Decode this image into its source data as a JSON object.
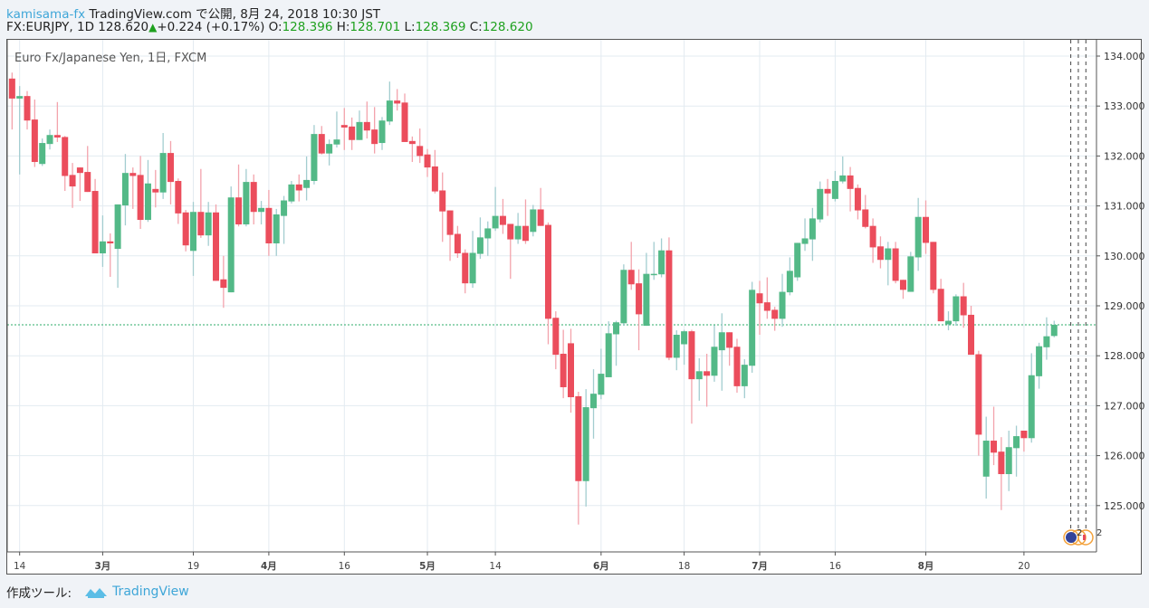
{
  "header": {
    "author": "kamisama-fx",
    "published": "TradingView.com で公開, 8月 24, 2018 10:30 JST",
    "symbol": "FX:EURJPY, 1D",
    "last": "128.620",
    "change": "+0.224 (+0.17%)",
    "o_label": "O:",
    "o": "128.396",
    "h_label": "H:",
    "h": "128.701",
    "l_label": "L:",
    "l": "128.369",
    "c_label": "C:",
    "c": "128.620"
  },
  "legend": "Euro Fx/Japanese Yen, 1日, FXCM",
  "footer": {
    "label": "作成ツール:",
    "brand": "TradingView"
  },
  "colors": {
    "up": "#53b987",
    "down": "#eb4d5c",
    "up_wick": "#a3cdd0",
    "down_wick": "#f3a3ac",
    "grid": "#e3ebf1",
    "last_line": "#2dab6a"
  },
  "chart_data": {
    "type": "candlestick",
    "title": "Euro Fx/Japanese Yen, 1日, FXCM",
    "ylim": [
      124.2,
      134.3
    ],
    "y_ticks": [
      "125.000",
      "126.000",
      "127.000",
      "128.000",
      "129.000",
      "130.000",
      "131.000",
      "132.000",
      "133.000",
      "134.000"
    ],
    "x_ticks": [
      {
        "label": "14",
        "index": 2,
        "bold": false
      },
      {
        "label": "3月",
        "index": 13,
        "bold": true
      },
      {
        "label": "19",
        "index": 25,
        "bold": false
      },
      {
        "label": "4月",
        "index": 35,
        "bold": true
      },
      {
        "label": "16",
        "index": 45,
        "bold": false
      },
      {
        "label": "5月",
        "index": 56,
        "bold": true
      },
      {
        "label": "14",
        "index": 65,
        "bold": false
      },
      {
        "label": "6月",
        "index": 79,
        "bold": true
      },
      {
        "label": "18",
        "index": 90,
        "bold": false
      },
      {
        "label": "7月",
        "index": 100,
        "bold": true
      },
      {
        "label": "16",
        "index": 110,
        "bold": false
      },
      {
        "label": "8月",
        "index": 122,
        "bold": true
      },
      {
        "label": "20",
        "index": 135,
        "bold": false
      }
    ],
    "last_price": 128.62,
    "future_event_markers": [
      141.2,
      142.2,
      143.2
    ],
    "event_badges": [
      "2",
      "2"
    ],
    "ohlc": [
      [
        133.35,
        133.6,
        133.2,
        133.55
      ],
      [
        133.55,
        133.67,
        132.53,
        133.15
      ],
      [
        133.15,
        133.4,
        131.63,
        133.2
      ],
      [
        133.2,
        133.3,
        132.53,
        132.71
      ],
      [
        132.73,
        133.13,
        131.78,
        131.88
      ],
      [
        131.84,
        132.35,
        131.8,
        132.26
      ],
      [
        132.24,
        132.53,
        132.13,
        132.42
      ],
      [
        132.42,
        133.08,
        132.28,
        132.37
      ],
      [
        132.38,
        132.4,
        131.3,
        131.6
      ],
      [
        131.62,
        131.86,
        130.96,
        131.39
      ],
      [
        131.77,
        131.77,
        131.1,
        131.66
      ],
      [
        131.68,
        132.2,
        131.28,
        131.28
      ],
      [
        131.3,
        131.54,
        130.05,
        130.05
      ],
      [
        130.05,
        130.81,
        129.78,
        130.29
      ],
      [
        130.29,
        130.45,
        129.58,
        130.25
      ],
      [
        130.14,
        131.03,
        129.36,
        131.03
      ],
      [
        131.01,
        132.04,
        130.61,
        131.66
      ],
      [
        131.66,
        131.77,
        130.94,
        131.6
      ],
      [
        131.62,
        132.0,
        130.54,
        130.72
      ],
      [
        130.72,
        131.92,
        130.68,
        131.45
      ],
      [
        131.34,
        131.72,
        130.97,
        131.27
      ],
      [
        131.27,
        132.46,
        131.14,
        132.06
      ],
      [
        132.06,
        132.3,
        131.03,
        131.48
      ],
      [
        131.5,
        131.55,
        130.64,
        130.85
      ],
      [
        130.87,
        130.92,
        130.09,
        130.21
      ],
      [
        130.1,
        131.08,
        129.6,
        130.88
      ],
      [
        130.88,
        131.74,
        130.36,
        130.41
      ],
      [
        130.41,
        131.08,
        130.2,
        130.87
      ],
      [
        130.87,
        131.03,
        129.5,
        129.5
      ],
      [
        129.53,
        130.0,
        128.96,
        129.36
      ],
      [
        129.27,
        131.39,
        129.27,
        131.17
      ],
      [
        131.17,
        131.83,
        130.59,
        130.63
      ],
      [
        130.63,
        131.74,
        130.59,
        131.48
      ],
      [
        131.48,
        131.63,
        130.63,
        130.88
      ],
      [
        130.88,
        131.1,
        130.63,
        130.96
      ],
      [
        130.96,
        131.32,
        130.0,
        130.25
      ],
      [
        130.25,
        130.94,
        130.0,
        130.83
      ],
      [
        130.8,
        131.2,
        130.24,
        131.11
      ],
      [
        131.09,
        131.5,
        131.05,
        131.43
      ],
      [
        131.43,
        131.63,
        131.09,
        131.31
      ],
      [
        131.36,
        131.99,
        131.11,
        131.52
      ],
      [
        131.5,
        132.62,
        131.43,
        132.44
      ],
      [
        132.44,
        132.6,
        132.03,
        132.05
      ],
      [
        132.05,
        132.33,
        131.81,
        132.24
      ],
      [
        132.23,
        132.89,
        132.17,
        132.33
      ],
      [
        132.62,
        132.96,
        132.12,
        132.57
      ],
      [
        132.59,
        132.77,
        132.12,
        132.32
      ],
      [
        132.32,
        132.91,
        132.32,
        132.68
      ],
      [
        132.68,
        133.09,
        132.35,
        132.51
      ],
      [
        132.53,
        132.98,
        132.05,
        132.24
      ],
      [
        132.26,
        132.78,
        132.12,
        132.71
      ],
      [
        132.69,
        133.49,
        132.62,
        133.11
      ],
      [
        133.11,
        133.34,
        132.91,
        133.05
      ],
      [
        133.07,
        133.25,
        132.28,
        132.28
      ],
      [
        132.3,
        132.39,
        131.88,
        132.24
      ],
      [
        132.2,
        132.55,
        131.86,
        132.0
      ],
      [
        132.03,
        132.14,
        131.58,
        131.77
      ],
      [
        131.79,
        132.12,
        131.25,
        131.29
      ],
      [
        131.31,
        131.67,
        130.28,
        130.89
      ],
      [
        130.91,
        130.91,
        129.9,
        130.42
      ],
      [
        130.44,
        130.6,
        129.96,
        130.05
      ],
      [
        130.06,
        130.13,
        129.25,
        129.45
      ],
      [
        129.45,
        130.5,
        129.36,
        130.06
      ],
      [
        130.04,
        130.77,
        129.94,
        130.37
      ],
      [
        130.35,
        130.69,
        130.0,
        130.55
      ],
      [
        130.55,
        131.38,
        130.5,
        130.8
      ],
      [
        130.8,
        131.14,
        130.44,
        130.62
      ],
      [
        130.64,
        130.64,
        129.54,
        130.33
      ],
      [
        130.33,
        130.86,
        130.24,
        130.6
      ],
      [
        130.6,
        131.13,
        130.24,
        130.3
      ],
      [
        130.48,
        131.02,
        130.39,
        130.93
      ],
      [
        130.93,
        131.36,
        130.6,
        130.6
      ],
      [
        130.62,
        130.67,
        128.23,
        128.74
      ],
      [
        128.76,
        128.89,
        127.73,
        128.02
      ],
      [
        128.04,
        128.52,
        127.15,
        127.37
      ],
      [
        128.25,
        128.54,
        126.86,
        127.17
      ],
      [
        127.19,
        127.28,
        124.62,
        125.49
      ],
      [
        125.49,
        127.33,
        124.98,
        126.97
      ],
      [
        126.95,
        127.73,
        126.34,
        127.24
      ],
      [
        127.22,
        128.14,
        127.13,
        127.64
      ],
      [
        127.57,
        128.69,
        127.57,
        128.45
      ],
      [
        128.43,
        128.7,
        127.8,
        128.67
      ],
      [
        128.65,
        129.83,
        128.6,
        129.72
      ],
      [
        129.72,
        130.28,
        129.32,
        129.43
      ],
      [
        129.45,
        129.73,
        128.11,
        128.83
      ],
      [
        128.6,
        130.06,
        128.6,
        129.64
      ],
      [
        129.63,
        130.28,
        129.52,
        129.64
      ],
      [
        129.63,
        130.35,
        129.57,
        130.11
      ],
      [
        130.11,
        130.37,
        127.91,
        127.96
      ],
      [
        127.96,
        128.51,
        127.71,
        128.42
      ],
      [
        128.23,
        128.52,
        127.82,
        128.49
      ],
      [
        128.49,
        128.52,
        126.64,
        127.53
      ],
      [
        127.53,
        127.95,
        127.1,
        127.69
      ],
      [
        127.69,
        128.04,
        126.98,
        127.6
      ],
      [
        127.6,
        128.61,
        127.48,
        128.18
      ],
      [
        128.11,
        128.85,
        127.3,
        128.47
      ],
      [
        128.47,
        128.47,
        127.8,
        128.16
      ],
      [
        128.18,
        128.34,
        127.26,
        127.39
      ],
      [
        127.39,
        127.93,
        127.15,
        127.82
      ],
      [
        127.8,
        129.48,
        127.66,
        129.32
      ],
      [
        129.25,
        129.5,
        128.42,
        129.05
      ],
      [
        129.07,
        129.57,
        128.74,
        128.9
      ],
      [
        128.92,
        128.98,
        128.5,
        128.74
      ],
      [
        128.74,
        129.64,
        128.58,
        129.28
      ],
      [
        129.27,
        129.97,
        129.21,
        129.7
      ],
      [
        129.57,
        130.26,
        129.5,
        130.26
      ],
      [
        130.24,
        130.75,
        130.1,
        130.35
      ],
      [
        130.33,
        130.96,
        129.9,
        130.75
      ],
      [
        130.73,
        131.49,
        130.67,
        131.34
      ],
      [
        131.34,
        131.54,
        130.8,
        131.25
      ],
      [
        131.14,
        131.7,
        131.09,
        131.5
      ],
      [
        131.49,
        131.99,
        131.45,
        131.61
      ],
      [
        131.61,
        131.78,
        130.89,
        131.34
      ],
      [
        131.36,
        131.43,
        130.73,
        130.91
      ],
      [
        130.93,
        131.22,
        130.55,
        130.58
      ],
      [
        130.6,
        130.75,
        129.86,
        130.17
      ],
      [
        130.19,
        130.39,
        129.75,
        129.92
      ],
      [
        129.92,
        130.28,
        129.41,
        130.15
      ],
      [
        130.15,
        130.28,
        129.45,
        129.5
      ],
      [
        129.52,
        129.52,
        129.14,
        129.32
      ],
      [
        129.28,
        130.08,
        129.28,
        129.99
      ],
      [
        129.97,
        131.16,
        129.7,
        130.78
      ],
      [
        130.78,
        131.11,
        130.04,
        130.26
      ],
      [
        130.28,
        130.28,
        129.25,
        129.32
      ],
      [
        129.34,
        129.54,
        128.69,
        128.69
      ],
      [
        128.63,
        128.89,
        128.51,
        128.7
      ],
      [
        128.69,
        129.23,
        128.6,
        129.19
      ],
      [
        129.19,
        129.46,
        128.56,
        128.81
      ],
      [
        128.82,
        129.0,
        128.02,
        128.02
      ],
      [
        128.03,
        128.1,
        126.0,
        126.42
      ],
      [
        125.58,
        126.78,
        125.14,
        126.3
      ],
      [
        126.3,
        126.98,
        125.81,
        126.06
      ],
      [
        126.08,
        126.37,
        124.91,
        125.63
      ],
      [
        125.63,
        126.5,
        125.29,
        126.17
      ],
      [
        126.15,
        126.6,
        125.58,
        126.39
      ],
      [
        126.5,
        126.5,
        126.08,
        126.35
      ],
      [
        126.35,
        128.05,
        126.26,
        127.61
      ],
      [
        127.59,
        128.26,
        127.34,
        128.19
      ],
      [
        128.17,
        128.77,
        127.92,
        128.39
      ],
      [
        128.396,
        128.701,
        128.369,
        128.62
      ]
    ]
  }
}
